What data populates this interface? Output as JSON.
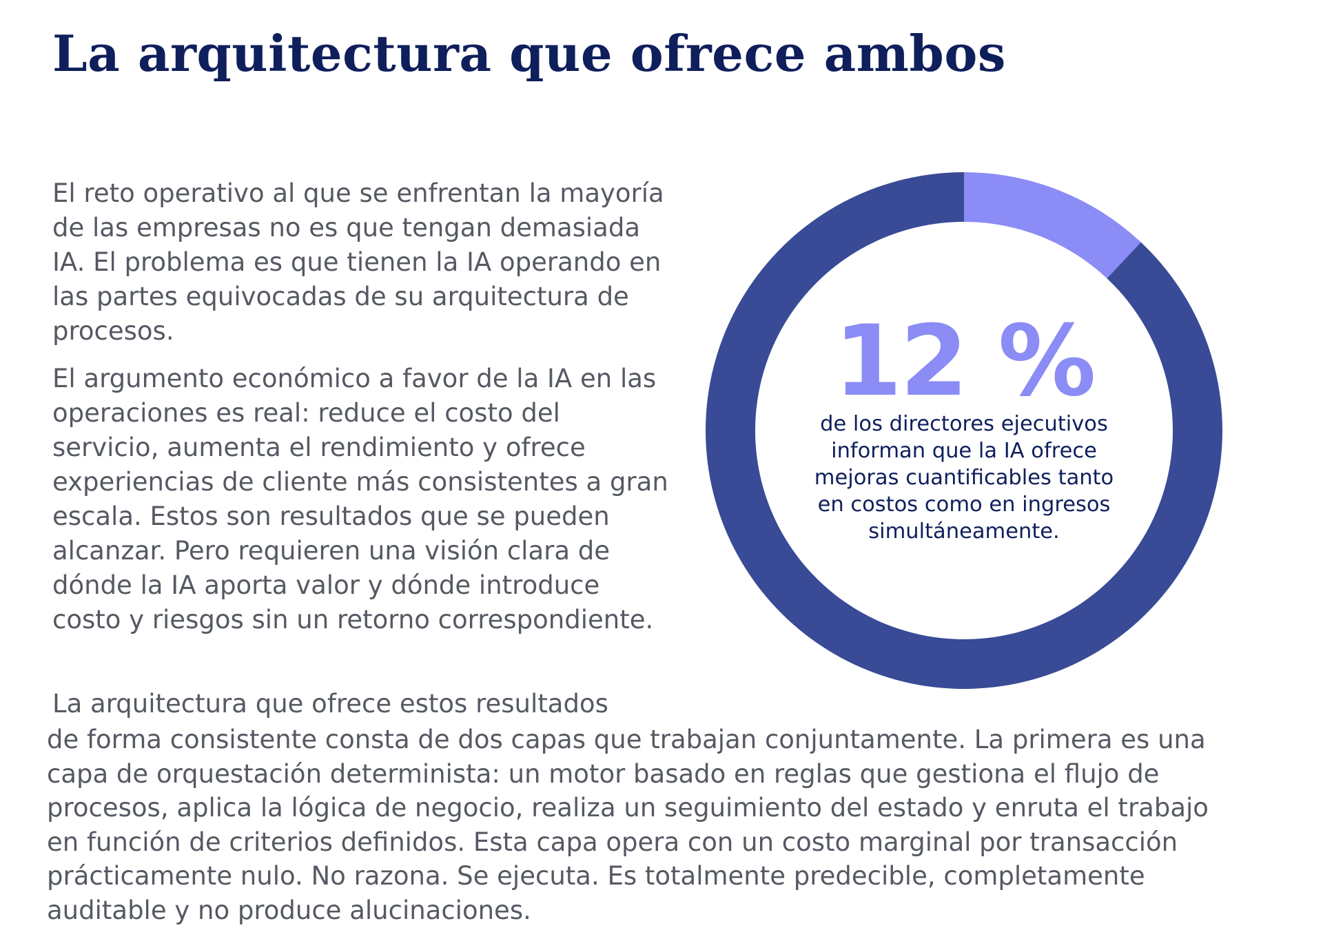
{
  "title": "La arquitectura que ofrece ambos",
  "paragraphs": {
    "p1": "El reto operativo al que se enfrentan la mayoría de las empresas no es que tengan demasiada IA. El problema es que tienen la IA operando en las partes equivocadas de su arquitectura de procesos.",
    "p2": "El argumento económico a favor de la IA en las operaciones es real: reduce el costo del servicio, aumenta el rendimiento y ofrece experiencias de cliente más consistentes a gran escala. Estos son resultados que se pueden alcanzar. Pero requieren una visión clara de dónde la IA aporta valor y dónde introduce costo y riesgos sin un retorno correspondiente.",
    "p3_start": "La arquitectura que ofrece estos resultados",
    "p3_rest": "de forma consistente consta de dos capas que trabajan conjuntamente. La primera es una capa de orquestación determinista: un motor basado en reglas que gestiona el flujo de procesos, aplica la lógica de negocio, realiza un seguimiento del estado y enruta el trabajo en función de criterios definidos. Esta capa opera con un costo marginal por transacción prácticamente nulo. No razona. Se ejecuta. Es totalmente predecible, completamente auditable y no produce alucinaciones."
  },
  "stat": {
    "value": "12 %",
    "caption": "de los directores ejecutivos informan que la IA ofrece mejoras cuantificables tanto en costos como en ingresos simultáneamente."
  },
  "chart_data": {
    "type": "pie",
    "style": "donut",
    "values": [
      12,
      88
    ],
    "colors": [
      "#8b8cf5",
      "#394b96"
    ],
    "start": "top",
    "direction": "clockwise"
  }
}
